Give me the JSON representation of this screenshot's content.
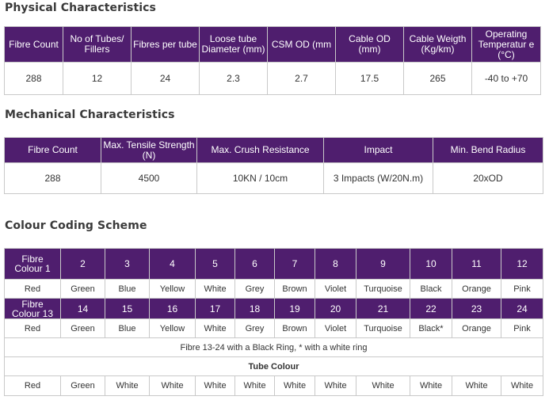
{
  "physical": {
    "title": "Physical Characteristics",
    "headers": [
      "Fibre Count",
      "No of Tubes/ Fillers",
      "Fibres per tube",
      "Loose tube Diameter (mm)",
      "CSM OD (mm",
      "Cable OD (mm)",
      "Cable Weigth (Kg/km)",
      "Operating Temperatur e (°C)"
    ],
    "values": [
      "288",
      "12",
      "24",
      "2.3",
      "2.7",
      "17.5",
      "265",
      "-40 to +70"
    ]
  },
  "mechanical": {
    "title": "Mechanical Characteristics",
    "headers": [
      "Fibre Count",
      "Max. Tensile Strength (N)",
      "Max. Crush Resistance",
      "Impact",
      "Min. Bend Radius"
    ],
    "values": [
      "288",
      "4500",
      "10KN / 10cm",
      "3 Impacts (W/20N.m)",
      "20xOD"
    ]
  },
  "colour": {
    "title": "Colour Coding Scheme",
    "row1_label": "Fibre Colour 1",
    "row1_numbers": [
      "2",
      "3",
      "4",
      "5",
      "6",
      "7",
      "8",
      "9",
      "10",
      "11",
      "12"
    ],
    "row1_colours": [
      "Red",
      "Green",
      "Blue",
      "Yellow",
      "White",
      "Grey",
      "Brown",
      "Violet",
      "Turquoise",
      "Black",
      "Orange",
      "Pink"
    ],
    "row2_label": "Fibre Colour 13",
    "row2_numbers": [
      "14",
      "15",
      "16",
      "17",
      "18",
      "19",
      "20",
      "21",
      "22",
      "23",
      "24"
    ],
    "row2_colours": [
      "Red",
      "Green",
      "Blue",
      "Yellow",
      "White",
      "Grey",
      "Brown",
      "Violet",
      "Turquoise",
      "Black*",
      "Orange",
      "Pink"
    ],
    "note": "Fibre 13-24 with a Black Ring, * with a white ring",
    "tube_title": "Tube Colour",
    "tube_colours": [
      "Red",
      "Green",
      "White",
      "White",
      "White",
      "White",
      "White",
      "White",
      "White",
      "White",
      "White",
      "White"
    ]
  },
  "colors": {
    "header_bg": "#4f1e6e",
    "header_text": "#ffffff",
    "border": "#c9c9c9"
  }
}
